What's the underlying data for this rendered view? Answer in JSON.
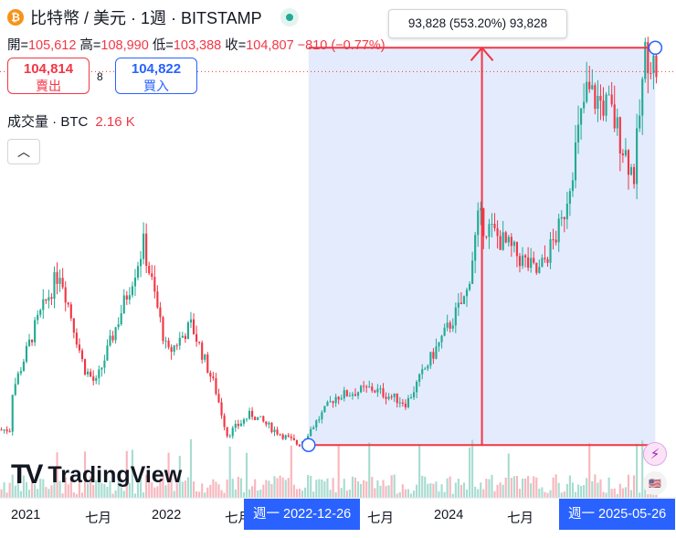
{
  "header": {
    "coin_icon": "bitcoin-icon",
    "title": "比特幣 / 美元 · 1週 · BITSTAMP",
    "live_status_color": "#22ab94"
  },
  "ohlc": {
    "open_label": "開=",
    "open_value": "105,612",
    "high_label": "高=",
    "high_value": "108,990",
    "low_label": "低=",
    "low_value": "103,388",
    "close_label": "收=",
    "close_value": "104,807",
    "change": "−810 (−0.77%)"
  },
  "trade": {
    "sell_price": "104,814",
    "sell_label": "賣出",
    "spread": "8",
    "buy_price": "104,822",
    "buy_label": "買入"
  },
  "volume": {
    "label": "成交量 · BTC",
    "value": "2.16 K"
  },
  "measure_tooltip": "93,828 (553.20%) 93,828",
  "logo_text": "TradingView",
  "x_axis": {
    "labels": [
      "2021",
      "七月",
      "2022",
      "七月",
      "七月",
      "2024",
      "七月"
    ],
    "badge_start": "週一  2022-12-26",
    "badge_end": "週一  2025-05-26"
  },
  "colors": {
    "up": "#22ab94",
    "down": "#f23645",
    "measure_fill": "#dbe4fc",
    "measure_line": "#f23645",
    "accent": "#2962ff"
  },
  "chart_data": {
    "type": "candlestick",
    "symbol": "BTC/USD",
    "interval": "1W",
    "x_range": [
      "2020-11",
      "2025-06"
    ],
    "y_range": [
      16000,
      112000
    ],
    "measure": {
      "start_date": "2022-12-26",
      "end_date": "2025-05-26",
      "start_price": 16600,
      "end_price": 110428,
      "change": 93828,
      "change_pct": 553.2
    },
    "last_close": 104807,
    "series": [
      {
        "date": "2020-12",
        "close": 28900
      },
      {
        "date": "2021-02",
        "close": 45000
      },
      {
        "date": "2021-04",
        "close": 58000
      },
      {
        "date": "2021-06",
        "close": 35000
      },
      {
        "date": "2021-07",
        "close": 31000
      },
      {
        "date": "2021-09",
        "close": 47000
      },
      {
        "date": "2021-11",
        "close": 64000
      },
      {
        "date": "2022-01",
        "close": 38000
      },
      {
        "date": "2022-03",
        "close": 45000
      },
      {
        "date": "2022-05",
        "close": 30000
      },
      {
        "date": "2022-06",
        "close": 19000
      },
      {
        "date": "2022-08",
        "close": 24000
      },
      {
        "date": "2022-10",
        "close": 20000
      },
      {
        "date": "2022-12",
        "close": 16600
      },
      {
        "date": "2023-03",
        "close": 28000
      },
      {
        "date": "2023-06",
        "close": 30000
      },
      {
        "date": "2023-09",
        "close": 26500
      },
      {
        "date": "2023-11",
        "close": 37000
      },
      {
        "date": "2024-02",
        "close": 52000
      },
      {
        "date": "2024-03",
        "close": 70000
      },
      {
        "date": "2024-06",
        "close": 62000
      },
      {
        "date": "2024-08",
        "close": 57000
      },
      {
        "date": "2024-10",
        "close": 69000
      },
      {
        "date": "2024-12",
        "close": 100000
      },
      {
        "date": "2025-02",
        "close": 96000
      },
      {
        "date": "2025-04",
        "close": 80000
      },
      {
        "date": "2025-05",
        "close": 110000
      },
      {
        "date": "2025-06",
        "close": 104807
      }
    ]
  }
}
